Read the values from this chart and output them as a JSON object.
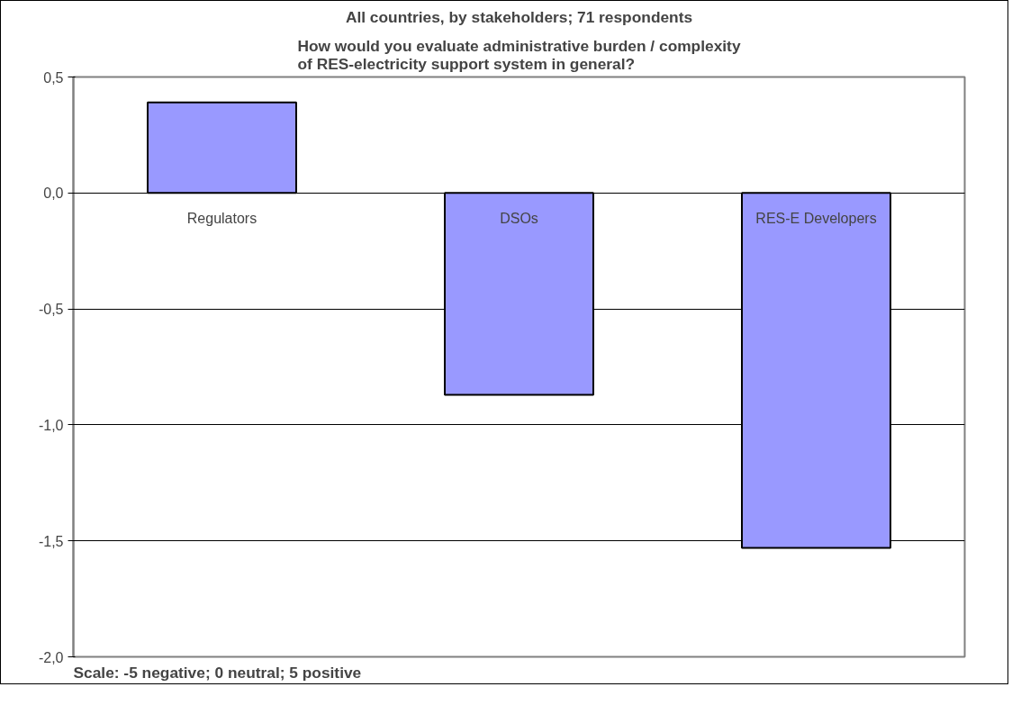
{
  "chart_data": {
    "type": "bar",
    "title": "All countries, by stakeholders; 71 respondents",
    "subtitle": "How would you evaluate administrative burden / complexity\nof RES-electricity support system in general?",
    "annotations": [
      "Scale: -5 negative; 0 neutral; 5 positive"
    ],
    "categories": [
      "Regulators",
      "DSOs",
      "RES-E Developers"
    ],
    "values": [
      0.39,
      -0.87,
      -1.53
    ],
    "color": "#9999ff",
    "ylim": [
      -2.0,
      0.5
    ],
    "yticks": [
      {
        "value": -2.0,
        "label": "-2,0"
      },
      {
        "value": -1.5,
        "label": "-1,5"
      },
      {
        "value": -1.0,
        "label": "-1,0"
      },
      {
        "value": -0.5,
        "label": "-0,5"
      },
      {
        "value": 0.0,
        "label": "0,0"
      },
      {
        "value": 0.5,
        "label": "0,5"
      }
    ],
    "grid": "y"
  }
}
